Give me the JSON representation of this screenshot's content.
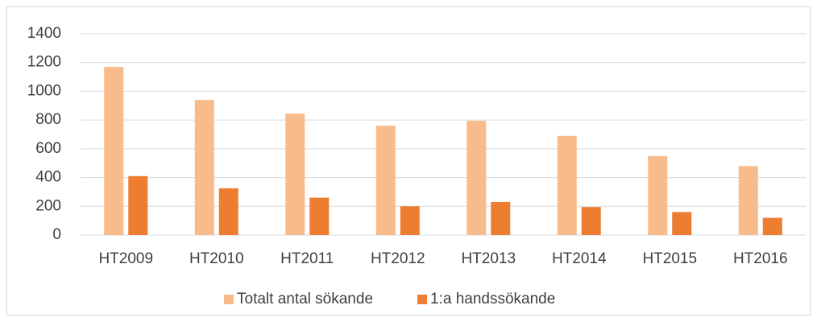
{
  "chart_data": {
    "type": "bar",
    "categories": [
      "HT2009",
      "HT2010",
      "HT2011",
      "HT2012",
      "HT2013",
      "HT2014",
      "HT2015",
      "HT2016"
    ],
    "series": [
      {
        "name": "Totalt antal sökande",
        "color": "#f8bc8c",
        "values": [
          1170,
          940,
          845,
          760,
          795,
          690,
          550,
          480
        ]
      },
      {
        "name": "1:a handssökande",
        "color": "#ed7d31",
        "values": [
          410,
          325,
          260,
          200,
          230,
          195,
          160,
          120
        ]
      }
    ],
    "ylim": [
      0,
      1400
    ],
    "yticks": [
      0,
      200,
      400,
      600,
      800,
      1000,
      1200,
      1400
    ],
    "grid": true,
    "legend": "bottom"
  }
}
